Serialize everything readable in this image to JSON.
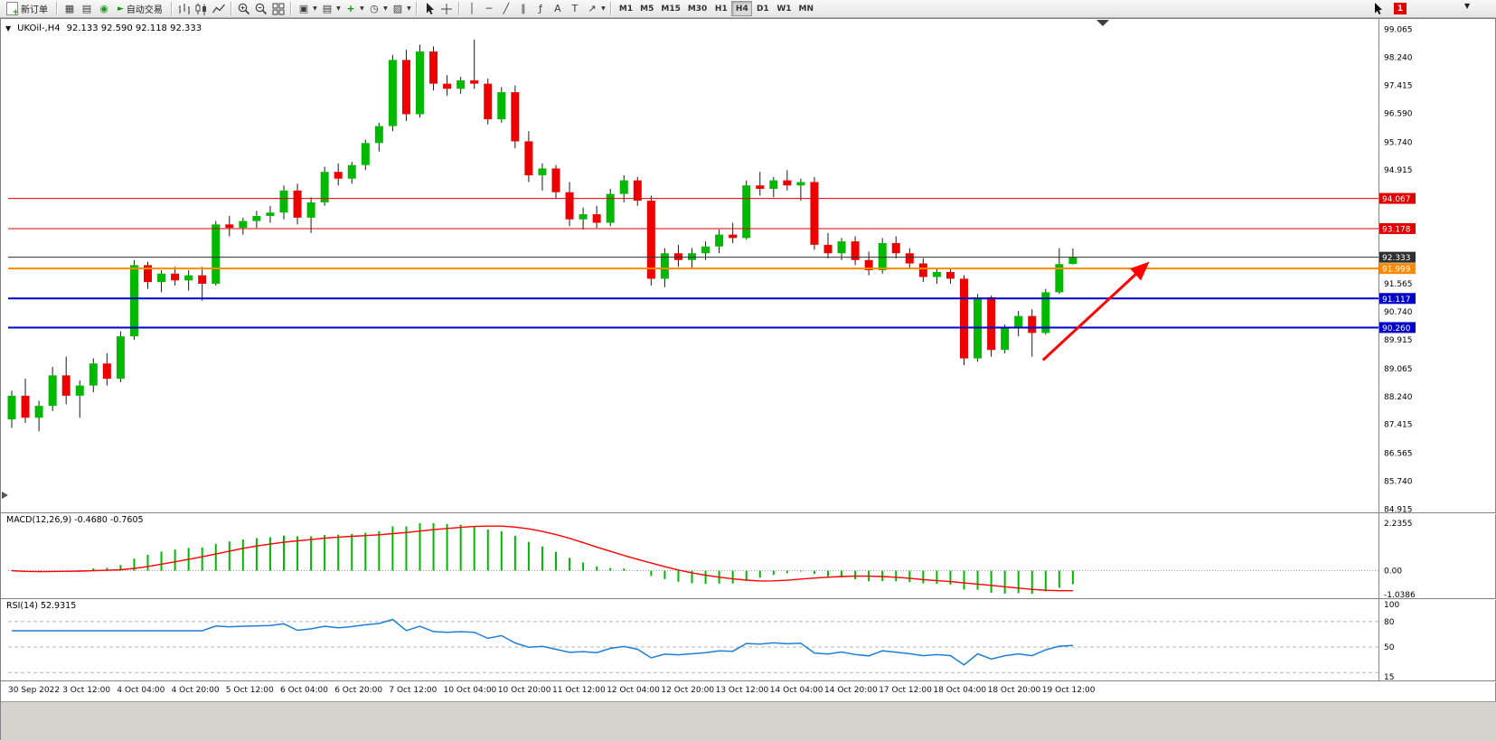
{
  "toolbar": {
    "new_order_label": "新订单",
    "autotrade_label": "自动交易",
    "timeframes": [
      "M1",
      "M5",
      "M15",
      "M30",
      "H1",
      "H4",
      "D1",
      "W1",
      "MN"
    ],
    "active_timeframe": "H4",
    "notification_count": "1"
  },
  "main_chart": {
    "symbol_title": "UKOil-,H4",
    "ohlc_title": "92.133 92.590 92.118 92.333",
    "y_axis_labels": [
      "99.065",
      "98.240",
      "97.415",
      "96.590",
      "95.740",
      "94.915",
      "91.565",
      "90.740",
      "89.915",
      "89.065",
      "88.240",
      "87.415",
      "86.565",
      "85.740",
      "84.915"
    ],
    "price_levels": [
      {
        "price": 94.067,
        "label": "94.067",
        "color": "#e00000",
        "width": 1,
        "role": "resistance-line"
      },
      {
        "price": 93.178,
        "label": "93.178",
        "color": "#e00000",
        "width": 1,
        "role": "resistance-line"
      },
      {
        "price": 92.333,
        "label": "92.333",
        "color": "#2f2f2f",
        "width": 1,
        "role": "current-price-line"
      },
      {
        "price": 91.999,
        "label": "91.999",
        "color": "#ff8a00",
        "width": 2,
        "role": "support-line"
      },
      {
        "price": 91.117,
        "label": "91.117",
        "color": "#0000c8",
        "width": 2,
        "role": "support-line"
      },
      {
        "price": 90.26,
        "label": "90.260",
        "color": "#0000c8",
        "width": 2,
        "role": "support-line"
      }
    ]
  },
  "macd_panel": {
    "title": "MACD(12,26,9) -0.4680 -0.7605",
    "axis_labels": [
      "2.2355",
      "0.00",
      "-1.0386"
    ]
  },
  "rsi_panel": {
    "title": "RSI(14) 52.9315",
    "axis_labels": [
      "100",
      "80",
      "50",
      "15"
    ],
    "dashed_levels": [
      80,
      50,
      20
    ]
  },
  "chart_data": [
    {
      "type": "candlestick",
      "symbol": "UKOil-",
      "period": "H4",
      "last_bar": {
        "open": 92.133,
        "high": 92.59,
        "low": 92.118,
        "close": 92.333
      },
      "up_color": "#00b900",
      "down_color": "#ee0000",
      "wick_color": "#1a1a1a",
      "ylim": [
        84.915,
        99.065
      ],
      "x_labels": [
        "30 Sep 2022",
        "3 Oct 12:00",
        "4 Oct 04:00",
        "4 Oct 20:00",
        "5 Oct 12:00",
        "6 Oct 04:00",
        "6 Oct 20:00",
        "7 Oct 12:00",
        "10 Oct 04:00",
        "10 Oct 20:00",
        "11 Oct 12:00",
        "12 Oct 04:00",
        "12 Oct 20:00",
        "13 Oct 12:00",
        "14 Oct 04:00",
        "14 Oct 20:00",
        "17 Oct 12:00",
        "18 Oct 04:00",
        "18 Oct 20:00",
        "19 Oct 12:00"
      ],
      "ohlc": [
        [
          87.55,
          88.4,
          87.3,
          88.25
        ],
        [
          88.25,
          88.75,
          87.45,
          87.6
        ],
        [
          87.6,
          88.1,
          87.2,
          87.95
        ],
        [
          87.95,
          89.1,
          87.8,
          88.85
        ],
        [
          88.85,
          89.4,
          88.0,
          88.25
        ],
        [
          88.25,
          88.7,
          87.6,
          88.55
        ],
        [
          88.55,
          89.35,
          88.35,
          89.2
        ],
        [
          89.2,
          89.5,
          88.55,
          88.75
        ],
        [
          88.75,
          90.15,
          88.65,
          90.0
        ],
        [
          90.0,
          92.25,
          89.9,
          92.1
        ],
        [
          92.1,
          92.2,
          91.4,
          91.6
        ],
        [
          91.6,
          91.95,
          91.3,
          91.85
        ],
        [
          91.85,
          92.05,
          91.5,
          91.65
        ],
        [
          91.65,
          91.95,
          91.35,
          91.8
        ],
        [
          91.8,
          92.05,
          91.05,
          91.55
        ],
        [
          91.55,
          93.4,
          91.5,
          93.3
        ],
        [
          93.3,
          93.55,
          92.95,
          93.2
        ],
        [
          93.2,
          93.5,
          93.0,
          93.4
        ],
        [
          93.4,
          93.7,
          93.2,
          93.55
        ],
        [
          93.55,
          93.85,
          93.35,
          93.65
        ],
        [
          93.65,
          94.45,
          93.45,
          94.3
        ],
        [
          94.3,
          94.5,
          93.3,
          93.5
        ],
        [
          93.5,
          94.1,
          93.05,
          93.95
        ],
        [
          93.95,
          95.0,
          93.85,
          94.85
        ],
        [
          94.85,
          95.1,
          94.45,
          94.65
        ],
        [
          94.65,
          95.15,
          94.5,
          95.05
        ],
        [
          95.05,
          95.8,
          94.9,
          95.7
        ],
        [
          95.7,
          96.3,
          95.45,
          96.2
        ],
        [
          96.2,
          98.3,
          96.05,
          98.15
        ],
        [
          98.15,
          98.45,
          96.35,
          96.55
        ],
        [
          96.55,
          98.6,
          96.45,
          98.4
        ],
        [
          98.4,
          98.55,
          97.25,
          97.45
        ],
        [
          97.45,
          97.7,
          97.1,
          97.3
        ],
        [
          97.3,
          97.65,
          97.15,
          97.55
        ],
        [
          97.55,
          98.75,
          97.3,
          97.45
        ],
        [
          97.45,
          97.6,
          96.25,
          96.4
        ],
        [
          96.4,
          97.35,
          96.3,
          97.2
        ],
        [
          97.2,
          97.4,
          95.55,
          95.75
        ],
        [
          95.75,
          96.05,
          94.55,
          94.75
        ],
        [
          94.75,
          95.1,
          94.3,
          94.95
        ],
        [
          94.95,
          95.05,
          94.05,
          94.25
        ],
        [
          94.25,
          94.55,
          93.25,
          93.45
        ],
        [
          93.45,
          93.8,
          93.15,
          93.6
        ],
        [
          93.6,
          93.85,
          93.2,
          93.35
        ],
        [
          93.35,
          94.35,
          93.25,
          94.2
        ],
        [
          94.2,
          94.75,
          93.95,
          94.6
        ],
        [
          94.6,
          94.7,
          93.85,
          94.0
        ],
        [
          94.0,
          94.15,
          91.5,
          91.7
        ],
        [
          91.7,
          92.6,
          91.45,
          92.45
        ],
        [
          92.45,
          92.7,
          92.05,
          92.25
        ],
        [
          92.25,
          92.6,
          92.0,
          92.45
        ],
        [
          92.45,
          92.8,
          92.25,
          92.65
        ],
        [
          92.65,
          93.15,
          92.45,
          93.0
        ],
        [
          93.0,
          93.35,
          92.75,
          92.9
        ],
        [
          92.9,
          94.6,
          92.85,
          94.45
        ],
        [
          94.45,
          94.85,
          94.15,
          94.35
        ],
        [
          94.35,
          94.7,
          94.1,
          94.6
        ],
        [
          94.6,
          94.9,
          94.3,
          94.45
        ],
        [
          94.45,
          94.65,
          94.0,
          94.55
        ],
        [
          94.55,
          94.7,
          92.55,
          92.7
        ],
        [
          92.7,
          93.05,
          92.3,
          92.45
        ],
        [
          92.45,
          92.9,
          92.25,
          92.8
        ],
        [
          92.8,
          92.95,
          92.1,
          92.25
        ],
        [
          92.25,
          92.5,
          91.8,
          91.95
        ],
        [
          91.95,
          92.9,
          91.85,
          92.75
        ],
        [
          92.75,
          92.95,
          92.3,
          92.45
        ],
        [
          92.45,
          92.6,
          92.0,
          92.15
        ],
        [
          92.15,
          92.3,
          91.6,
          91.75
        ],
        [
          91.75,
          92.0,
          91.55,
          91.9
        ],
        [
          91.9,
          92.0,
          91.55,
          91.7
        ],
        [
          91.7,
          91.8,
          89.15,
          89.35
        ],
        [
          89.35,
          91.25,
          89.25,
          91.15
        ],
        [
          91.15,
          91.2,
          89.4,
          89.6
        ],
        [
          89.6,
          90.35,
          89.5,
          90.25
        ],
        [
          90.25,
          90.75,
          90.0,
          90.6
        ],
        [
          90.6,
          90.8,
          89.4,
          90.1
        ],
        [
          90.1,
          91.4,
          90.05,
          91.3
        ],
        [
          91.3,
          92.6,
          91.25,
          92.13
        ],
        [
          92.133,
          92.59,
          92.118,
          92.333
        ]
      ]
    },
    {
      "type": "macd",
      "name": "MACD",
      "params": [
        12,
        26,
        9
      ],
      "current": {
        "macd": -0.468,
        "signal": -0.7605
      },
      "histogram_color": "#00b900",
      "signal_color": "#ff0000",
      "y_axis": [
        2.2355,
        0.0,
        -1.0386
      ],
      "derived_from": "ohlc closes"
    },
    {
      "type": "line",
      "name": "RSI",
      "params": [
        14
      ],
      "current": 52.9315,
      "line_color": "#1f7fd6",
      "y_axis": [
        100,
        80,
        50,
        15
      ],
      "derived_from": "ohlc closes"
    }
  ],
  "annotations": [
    {
      "type": "arrow",
      "color": "#ff0000",
      "from": {
        "bar": 75.8,
        "price": 89.3
      },
      "to": {
        "bar": 83.4,
        "price": 92.12
      }
    }
  ]
}
